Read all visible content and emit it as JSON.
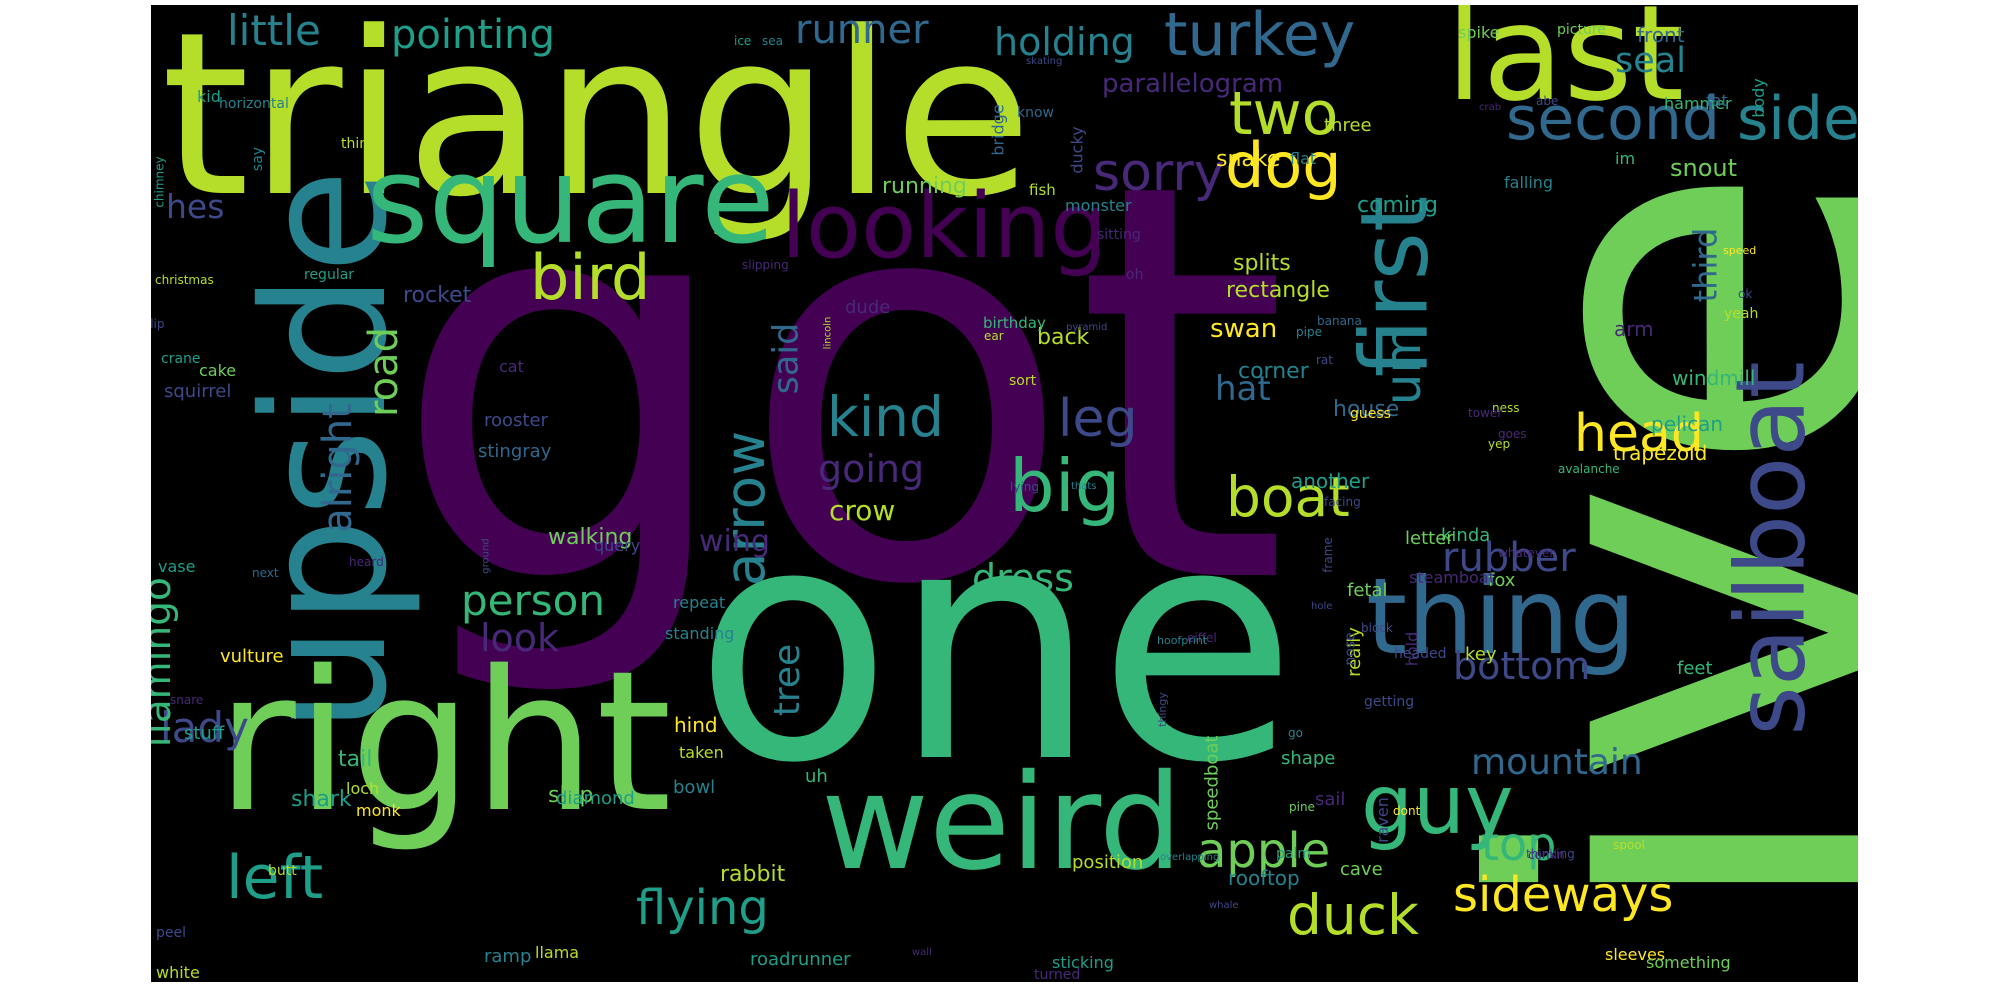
{
  "palette": [
    "#440154",
    "#482878",
    "#3e4989",
    "#31688e",
    "#26828e",
    "#1f9e89",
    "#35b779",
    "#6ece58",
    "#b5de2b",
    "#fde725"
  ],
  "words": [
    {
      "text": "got",
      "color": "#440154",
      "vertical": false
    },
    {
      "text": "one",
      "color": "#35b779",
      "vertical": false
    },
    {
      "text": "ive",
      "color": "#6ece58",
      "vertical": true
    },
    {
      "text": "triangle",
      "color": "#b5de2b",
      "vertical": false
    },
    {
      "text": "upside",
      "color": "#26828e",
      "vertical": true
    },
    {
      "text": "first",
      "color": "#26828e",
      "vertical": true
    },
    {
      "text": "square",
      "color": "#35b779",
      "vertical": false
    },
    {
      "text": "right",
      "color": "#6ece58",
      "vertical": false
    },
    {
      "text": "weird",
      "color": "#35b779",
      "vertical": false
    },
    {
      "text": "last",
      "color": "#b5de2b",
      "vertical": false
    },
    {
      "text": "sailboat",
      "color": "#3e4989",
      "vertical": true
    },
    {
      "text": "thing",
      "color": "#31688e",
      "vertical": false
    },
    {
      "text": "looking",
      "color": "#440154",
      "vertical": false
    },
    {
      "text": "guy",
      "color": "#35b779",
      "vertical": false
    },
    {
      "text": "second",
      "color": "#31688e",
      "vertical": false
    },
    {
      "text": "side",
      "color": "#26828e",
      "vertical": false
    },
    {
      "text": "turkey",
      "color": "#31688e",
      "vertical": false
    },
    {
      "text": "dog",
      "color": "#fde725",
      "vertical": false
    },
    {
      "text": "bird",
      "color": "#b5de2b",
      "vertical": false
    },
    {
      "text": "two",
      "color": "#b5de2b",
      "vertical": false
    },
    {
      "text": "big",
      "color": "#35b779",
      "vertical": false
    },
    {
      "text": "arrow",
      "color": "#26828e",
      "vertical": true
    },
    {
      "text": "kind",
      "color": "#26828e",
      "vertical": false
    },
    {
      "text": "left",
      "color": "#1f9e89",
      "vertical": false
    },
    {
      "text": "boat",
      "color": "#b5de2b",
      "vertical": false
    },
    {
      "text": "head",
      "color": "#fde725",
      "vertical": false
    },
    {
      "text": "sorry",
      "color": "#482878",
      "vertical": false
    },
    {
      "text": "um",
      "color": "#26828e",
      "vertical": true
    },
    {
      "text": "flying",
      "color": "#1f9e89",
      "vertical": false
    },
    {
      "text": "duck",
      "color": "#b5de2b",
      "vertical": false
    },
    {
      "text": "sideways",
      "color": "#fde725",
      "vertical": false
    },
    {
      "text": "apple",
      "color": "#6ece58",
      "vertical": false
    },
    {
      "text": "top",
      "color": "#35b779",
      "vertical": false
    },
    {
      "text": "person",
      "color": "#35b779",
      "vertical": false
    },
    {
      "text": "rubber",
      "color": "#3e4989",
      "vertical": false
    },
    {
      "text": "dress",
      "color": "#35b779",
      "vertical": false
    },
    {
      "text": "leg",
      "color": "#3e4989",
      "vertical": false
    },
    {
      "text": "bottom",
      "color": "#3e4989",
      "vertical": false
    },
    {
      "text": "mountain",
      "color": "#31688e",
      "vertical": false
    },
    {
      "text": "going",
      "color": "#482878",
      "vertical": false
    },
    {
      "text": "look",
      "color": "#482878",
      "vertical": false
    },
    {
      "text": "lady",
      "color": "#3e4989",
      "vertical": false
    },
    {
      "text": "flamingo",
      "color": "#35b779",
      "vertical": true
    },
    {
      "text": "alright",
      "color": "#31688e",
      "vertical": true
    },
    {
      "text": "road",
      "color": "#6ece58",
      "vertical": true
    },
    {
      "text": "little",
      "color": "#26828e",
      "vertical": false
    },
    {
      "text": "pointing",
      "color": "#1f9e89",
      "vertical": false
    },
    {
      "text": "runner",
      "color": "#31688e",
      "vertical": false
    },
    {
      "text": "holding",
      "color": "#26828e",
      "vertical": false
    },
    {
      "text": "seal",
      "color": "#26828e",
      "vertical": false
    },
    {
      "text": "third",
      "color": "#31688e",
      "vertical": true
    },
    {
      "text": "hes",
      "color": "#3e4989",
      "vertical": false
    },
    {
      "text": "tree",
      "color": "#26828e",
      "vertical": true
    },
    {
      "text": "said",
      "color": "#31688e",
      "vertical": true
    },
    {
      "text": "hat",
      "color": "#31688e",
      "vertical": false
    },
    {
      "text": "crow",
      "color": "#b5de2b",
      "vertical": false
    },
    {
      "text": "wing",
      "color": "#482878",
      "vertical": false
    },
    {
      "text": "parallelogram",
      "color": "#482878",
      "vertical": false
    },
    {
      "text": "swan",
      "color": "#fde725",
      "vertical": false
    },
    {
      "text": "snout",
      "color": "#6ece58",
      "vertical": false
    },
    {
      "text": "tail",
      "color": "#35b779",
      "vertical": false
    },
    {
      "text": "shark",
      "color": "#1f9e89",
      "vertical": false
    },
    {
      "text": "rabbit",
      "color": "#b5de2b",
      "vertical": false
    },
    {
      "text": "ship",
      "color": "#6ece58",
      "vertical": false
    },
    {
      "text": "walking",
      "color": "#6ece58",
      "vertical": false
    },
    {
      "text": "back",
      "color": "#b5de2b",
      "vertical": false
    },
    {
      "text": "running",
      "color": "#6ece58",
      "vertical": false
    },
    {
      "text": "rocket",
      "color": "#3e4989",
      "vertical": false
    },
    {
      "text": "splits",
      "color": "#b5de2b",
      "vertical": false
    },
    {
      "text": "snake",
      "color": "#fde725",
      "vertical": false
    },
    {
      "text": "rectangle",
      "color": "#b5de2b",
      "vertical": false
    },
    {
      "text": "coming",
      "color": "#1f9e89",
      "vertical": false
    },
    {
      "text": "corner",
      "color": "#26828e",
      "vertical": false
    },
    {
      "text": "house",
      "color": "#31688e",
      "vertical": false
    },
    {
      "text": "trapezoid",
      "color": "#fde725",
      "vertical": false
    },
    {
      "text": "pelican",
      "color": "#1f9e89",
      "vertical": false
    },
    {
      "text": "windmill",
      "color": "#35b779",
      "vertical": false
    },
    {
      "text": "arm",
      "color": "#482878",
      "vertical": false
    },
    {
      "text": "another",
      "color": "#1f9e89",
      "vertical": false
    },
    {
      "text": "kinda",
      "color": "#35b779",
      "vertical": false
    },
    {
      "text": "letter",
      "color": "#6ece58",
      "vertical": false
    },
    {
      "text": "fox",
      "color": "#6ece58",
      "vertical": false
    },
    {
      "text": "fetal",
      "color": "#6ece58",
      "vertical": false
    },
    {
      "text": "feet",
      "color": "#35b779",
      "vertical": false
    },
    {
      "text": "key",
      "color": "#b5de2b",
      "vertical": false
    },
    {
      "text": "sail",
      "color": "#482878",
      "vertical": false
    },
    {
      "text": "shape",
      "color": "#35b779",
      "vertical": false
    },
    {
      "text": "cave",
      "color": "#6ece58",
      "vertical": false
    },
    {
      "text": "rooftop",
      "color": "#26828e",
      "vertical": false
    },
    {
      "text": "position",
      "color": "#b5de2b",
      "vertical": false
    },
    {
      "text": "bowl",
      "color": "#26828e",
      "vertical": false
    },
    {
      "text": "diamond",
      "color": "#1f9e89",
      "vertical": false
    },
    {
      "text": "roadrunner",
      "color": "#1f9e89",
      "vertical": false
    },
    {
      "text": "llama",
      "color": "#b5de2b",
      "vertical": false
    },
    {
      "text": "ramp",
      "color": "#26828e",
      "vertical": false
    },
    {
      "text": "sticking",
      "color": "#1f9e89",
      "vertical": false
    },
    {
      "text": "sleeves",
      "color": "#fde725",
      "vertical": false
    },
    {
      "text": "something",
      "color": "#6ece58",
      "vertical": false
    },
    {
      "text": "turned",
      "color": "#482878",
      "vertical": false
    },
    {
      "text": "white",
      "color": "#b5de2b",
      "vertical": false
    },
    {
      "text": "peel",
      "color": "#3e4989",
      "vertical": false
    },
    {
      "text": "butt",
      "color": "#b5de2b",
      "vertical": false
    },
    {
      "text": "loch",
      "color": "#b5de2b",
      "vertical": false
    },
    {
      "text": "monk",
      "color": "#fde725",
      "vertical": false
    },
    {
      "text": "stuff",
      "color": "#1f9e89",
      "vertical": false
    },
    {
      "text": "vulture",
      "color": "#fde725",
      "vertical": false
    },
    {
      "text": "hind",
      "color": "#fde725",
      "vertical": false
    },
    {
      "text": "taken",
      "color": "#b5de2b",
      "vertical": false
    },
    {
      "text": "standing",
      "color": "#26828e",
      "vertical": false
    },
    {
      "text": "repeat",
      "color": "#26828e",
      "vertical": false
    },
    {
      "text": "uh",
      "color": "#35b779",
      "vertical": false
    },
    {
      "text": "query",
      "color": "#3e4989",
      "vertical": false
    },
    {
      "text": "rooster",
      "color": "#3e4989",
      "vertical": false
    },
    {
      "text": "stingray",
      "color": "#31688e",
      "vertical": false
    },
    {
      "text": "cat",
      "color": "#482878",
      "vertical": false
    },
    {
      "text": "squirrel",
      "color": "#3e4989",
      "vertical": false
    },
    {
      "text": "cake",
      "color": "#6ece58",
      "vertical": false
    },
    {
      "text": "crane",
      "color": "#1f9e89",
      "vertical": false
    },
    {
      "text": "vase",
      "color": "#1f9e89",
      "vertical": false
    },
    {
      "text": "regular",
      "color": "#1f9e89",
      "vertical": false
    },
    {
      "text": "christmas",
      "color": "#b5de2b",
      "vertical": false
    },
    {
      "text": "flip",
      "color": "#3e4989",
      "vertical": false
    },
    {
      "text": "chimney",
      "color": "#1f9e89",
      "vertical": true
    },
    {
      "text": "horizontal",
      "color": "#26828e",
      "vertical": false
    },
    {
      "text": "kid",
      "color": "#1f9e89",
      "vertical": false
    },
    {
      "text": "think",
      "color": "#b5de2b",
      "vertical": false
    },
    {
      "text": "say",
      "color": "#26828e",
      "vertical": true
    },
    {
      "text": "ice",
      "color": "#1f9e89",
      "vertical": false
    },
    {
      "text": "sea",
      "color": "#26828e",
      "vertical": false
    },
    {
      "text": "spike",
      "color": "#6ece58",
      "vertical": false
    },
    {
      "text": "picture",
      "color": "#6ece58",
      "vertical": false
    },
    {
      "text": "front",
      "color": "#31688e",
      "vertical": false
    },
    {
      "text": "body",
      "color": "#1f9e89",
      "vertical": true
    },
    {
      "text": "hammer",
      "color": "#35b779",
      "vertical": false
    },
    {
      "text": "fat",
      "color": "#31688e",
      "vertical": false
    },
    {
      "text": "falling",
      "color": "#26828e",
      "vertical": false
    },
    {
      "text": "im",
      "color": "#35b779",
      "vertical": false
    },
    {
      "text": "three",
      "color": "#b5de2b",
      "vertical": false
    },
    {
      "text": "flat",
      "color": "#26828e",
      "vertical": false
    },
    {
      "text": "monster",
      "color": "#26828e",
      "vertical": false
    },
    {
      "text": "ducky",
      "color": "#3e4989",
      "vertical": true
    },
    {
      "text": "bridge",
      "color": "#31688e",
      "vertical": true
    },
    {
      "text": "know",
      "color": "#31688e",
      "vertical": false
    },
    {
      "text": "skating",
      "color": "#3e4989",
      "vertical": false
    },
    {
      "text": "crab",
      "color": "#482878",
      "vertical": false
    },
    {
      "text": "abe",
      "color": "#3e4989",
      "vertical": false
    },
    {
      "text": "fish",
      "color": "#b5de2b",
      "vertical": false
    },
    {
      "text": "sitting",
      "color": "#482878",
      "vertical": false
    },
    {
      "text": "oh",
      "color": "#482878",
      "vertical": false
    },
    {
      "text": "slipping",
      "color": "#482878",
      "vertical": false
    },
    {
      "text": "dude",
      "color": "#482878",
      "vertical": false
    },
    {
      "text": "ear",
      "color": "#b5de2b",
      "vertical": false
    },
    {
      "text": "birthday",
      "color": "#35b779",
      "vertical": false
    },
    {
      "text": "lincoln",
      "color": "#b5de2b",
      "vertical": true
    },
    {
      "text": "banana",
      "color": "#31688e",
      "vertical": false
    },
    {
      "text": "rat",
      "color": "#3e4989",
      "vertical": false
    },
    {
      "text": "pipe",
      "color": "#26828e",
      "vertical": false
    },
    {
      "text": "pyramid",
      "color": "#3e4989",
      "vertical": false
    },
    {
      "text": "sort",
      "color": "#b5de2b",
      "vertical": false
    },
    {
      "text": "guess",
      "color": "#fde725",
      "vertical": false
    },
    {
      "text": "ness",
      "color": "#b5de2b",
      "vertical": false
    },
    {
      "text": "goes",
      "color": "#482878",
      "vertical": false
    },
    {
      "text": "avalanche",
      "color": "#35b779",
      "vertical": false
    },
    {
      "text": "yeah",
      "color": "#b5de2b",
      "vertical": false
    },
    {
      "text": "speed",
      "color": "#fde725",
      "vertical": false
    },
    {
      "text": "ok",
      "color": "#3e4989",
      "vertical": false
    },
    {
      "text": "yep",
      "color": "#b5de2b",
      "vertical": false
    },
    {
      "text": "tower",
      "color": "#482878",
      "vertical": false
    },
    {
      "text": "thats",
      "color": "#26828e",
      "vertical": false
    },
    {
      "text": "lying",
      "color": "#3e4989",
      "vertical": false
    },
    {
      "text": "frame",
      "color": "#3e4989",
      "vertical": true
    },
    {
      "text": "whatever",
      "color": "#482878",
      "vertical": false
    },
    {
      "text": "steamboat",
      "color": "#482878",
      "vertical": false
    },
    {
      "text": "facing",
      "color": "#3e4989",
      "vertical": false
    },
    {
      "text": "hole",
      "color": "#3e4989",
      "vertical": false
    },
    {
      "text": "block",
      "color": "#3e4989",
      "vertical": false
    },
    {
      "text": "eiffel",
      "color": "#482878",
      "vertical": false
    },
    {
      "text": "hoofprint",
      "color": "#26828e",
      "vertical": false
    },
    {
      "text": "thingy",
      "color": "#3e4989",
      "vertical": true
    },
    {
      "text": "getting",
      "color": "#3e4989",
      "vertical": false
    },
    {
      "text": "go",
      "color": "#26828e",
      "vertical": false
    },
    {
      "text": "speedboat",
      "color": "#6ece58",
      "vertical": true
    },
    {
      "text": "really",
      "color": "#b5de2b",
      "vertical": true
    },
    {
      "text": "nose",
      "color": "#3e4989",
      "vertical": true
    },
    {
      "text": "hold",
      "color": "#482878",
      "vertical": true
    },
    {
      "text": "headed",
      "color": "#3e4989",
      "vertical": false
    },
    {
      "text": "pine",
      "color": "#6ece58",
      "vertical": false
    },
    {
      "text": "palm",
      "color": "#1f9e89",
      "vertical": false
    },
    {
      "text": "raven",
      "color": "#3e4989",
      "vertical": true
    },
    {
      "text": "dont",
      "color": "#fde725",
      "vertical": false
    },
    {
      "text": "spool",
      "color": "#b5de2b",
      "vertical": false
    },
    {
      "text": "thinking",
      "color": "#3e4989",
      "vertical": false
    },
    {
      "text": "comin",
      "color": "#482878",
      "vertical": false
    },
    {
      "text": "overlapping",
      "color": "#26828e",
      "vertical": false
    },
    {
      "text": "whale",
      "color": "#3e4989",
      "vertical": false
    },
    {
      "text": "wall",
      "color": "#482878",
      "vertical": false
    },
    {
      "text": "heard",
      "color": "#482878",
      "vertical": false
    },
    {
      "text": "next",
      "color": "#31688e",
      "vertical": false
    },
    {
      "text": "ground",
      "color": "#3e4989",
      "vertical": true
    },
    {
      "text": "snare",
      "color": "#482878",
      "vertical": false
    }
  ]
}
